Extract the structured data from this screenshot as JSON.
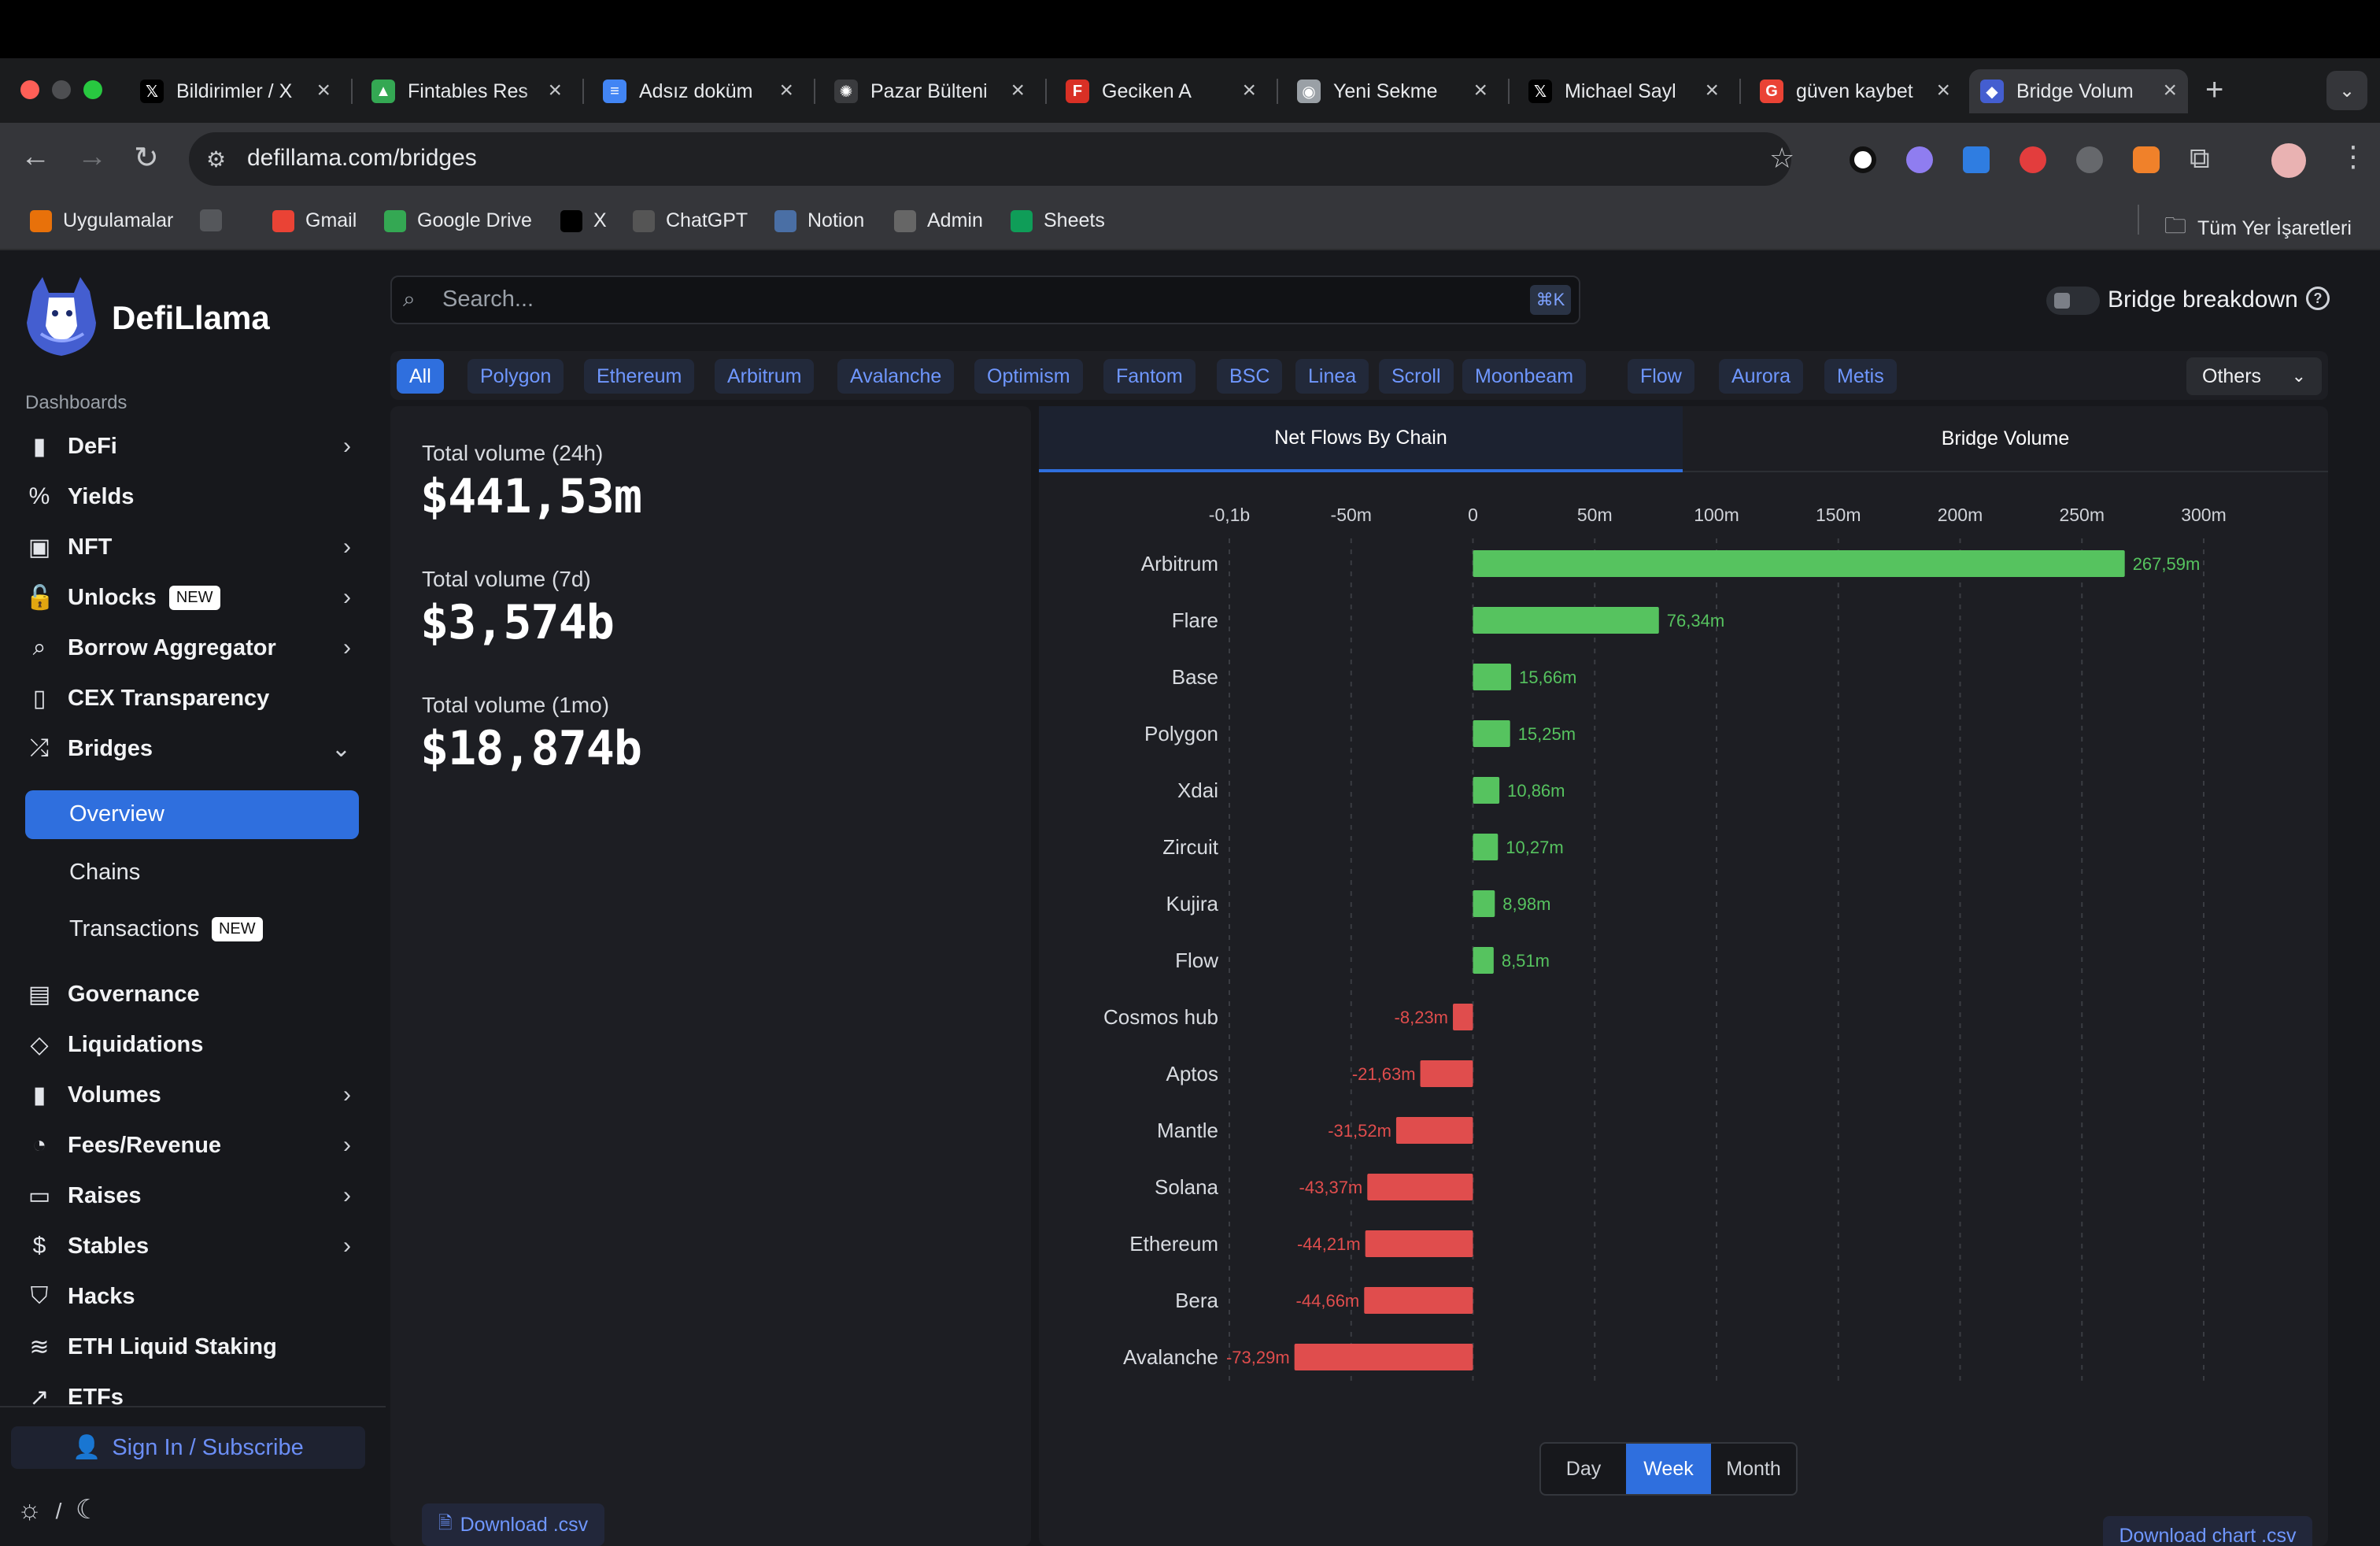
{
  "browser": {
    "tabs": [
      {
        "title": "Bildirimler / X",
        "icon": "x-logo-icon",
        "color": "#000000"
      },
      {
        "title": "Fintables Res",
        "icon": "google-drive-icon",
        "color": "#34a853"
      },
      {
        "title": "Adsız doküm",
        "icon": "google-docs-icon",
        "color": "#4285f4"
      },
      {
        "title": "Pazar Bülteni",
        "icon": "chatgpt-icon",
        "color": "#ffffff"
      },
      {
        "title": "Geciken A",
        "icon": "fintables-icon",
        "color": "#d93025"
      },
      {
        "title": "Yeni Sekme",
        "icon": "chrome-icon",
        "color": "#9aa0a6"
      },
      {
        "title": "Michael Sayl",
        "icon": "x-logo-icon",
        "color": "#000000"
      },
      {
        "title": "güven kaybet",
        "icon": "google-icon",
        "color": "#ea4335"
      },
      {
        "title": "Bridge Volum",
        "icon": "defillama-icon",
        "color": "#445ed0",
        "active": true
      }
    ],
    "url": "defillama.com/bridges",
    "bookmarks": [
      {
        "label": "Uygulamalar",
        "icon": "apps-grid-icon"
      },
      {
        "label": "",
        "icon": "grid-icon"
      },
      {
        "label": "Gmail",
        "icon": "gmail-icon"
      },
      {
        "label": "Google Drive",
        "icon": "google-drive-icon"
      },
      {
        "label": "X",
        "icon": "x-logo-icon"
      },
      {
        "label": "ChatGPT",
        "icon": "chatgpt-icon"
      },
      {
        "label": "Notion",
        "icon": "notion-icon"
      },
      {
        "label": "Admin",
        "icon": "globe-icon"
      },
      {
        "label": "Sheets",
        "icon": "google-sheets-icon"
      }
    ],
    "all_bookmarks": "Tüm Yer İşaretleri"
  },
  "sidebar": {
    "brand": "DefiLlama",
    "section_label": "Dashboards",
    "items": [
      {
        "label": "DeFi",
        "icon": "bar-chart-icon",
        "chevron": true
      },
      {
        "label": "Yields",
        "icon": "percent-icon"
      },
      {
        "label": "NFT",
        "icon": "image-icon",
        "chevron": true
      },
      {
        "label": "Unlocks",
        "icon": "unlock-icon",
        "chevron": true,
        "badge": "NEW"
      },
      {
        "label": "Borrow Aggregator",
        "icon": "search-icon",
        "chevron": true
      },
      {
        "label": "CEX Transparency",
        "icon": "book-icon"
      },
      {
        "label": "Bridges",
        "icon": "shuffle-icon",
        "expanded": true
      }
    ],
    "bridges_sub": {
      "overview": "Overview",
      "chains": "Chains",
      "transactions": "Transactions",
      "transactions_badge": "NEW"
    },
    "items2": [
      {
        "label": "Governance",
        "icon": "document-icon"
      },
      {
        "label": "Liquidations",
        "icon": "droplet-icon"
      },
      {
        "label": "Volumes",
        "icon": "bar-chart-icon",
        "chevron": true
      },
      {
        "label": "Fees/Revenue",
        "icon": "pie-chart-icon",
        "chevron": true
      },
      {
        "label": "Raises",
        "icon": "tablet-icon",
        "chevron": true
      },
      {
        "label": "Stables",
        "icon": "dollar-icon",
        "chevron": true
      },
      {
        "label": "Hacks",
        "icon": "shield-off-icon"
      },
      {
        "label": "ETH Liquid Staking",
        "icon": "layers-icon"
      },
      {
        "label": "ETFs",
        "icon": "trending-up-icon"
      }
    ],
    "sign_in": "Sign In / Subscribe",
    "theme_sep": "/"
  },
  "search": {
    "placeholder": "Search...",
    "shortcut": "⌘K"
  },
  "bridge_breakdown": {
    "label": "Bridge breakdown",
    "enabled": false
  },
  "chains_filter": {
    "chips": [
      "All",
      "Polygon",
      "Ethereum",
      "Arbitrum",
      "Avalanche",
      "Optimism",
      "Fantom",
      "BSC",
      "Linea",
      "Scroll",
      "Moonbeam",
      "Flow",
      "Aurora",
      "Metis"
    ],
    "active": "All",
    "others": "Others"
  },
  "stats": [
    {
      "label": "Total volume (24h)",
      "value": "$441,53m"
    },
    {
      "label": "Total volume (7d)",
      "value": "$3,574b"
    },
    {
      "label": "Total volume (1mo)",
      "value": "$18,874b"
    }
  ],
  "download_csv": "Download .csv",
  "chart_tabs": {
    "net_flows": "Net Flows By Chain",
    "bridge_volume": "Bridge Volume",
    "active": "net_flows"
  },
  "range": {
    "options": [
      "Day",
      "Week",
      "Month"
    ],
    "active": "Week"
  },
  "download_chart": "Download chart .csv",
  "colors": {
    "accent": "#2f6fde",
    "positive": "#56c35f",
    "negative": "#e04d4d",
    "panel": "#1d1e23",
    "background": "#17181c"
  },
  "chart_data": {
    "type": "bar",
    "orientation": "horizontal",
    "title": "",
    "xlabel": "",
    "ylabel": "",
    "xlim": [
      -100,
      300
    ],
    "x_ticks": [
      "-0,1b",
      "-50m",
      "0",
      "50m",
      "100m",
      "150m",
      "200m",
      "250m",
      "300m"
    ],
    "tick_values": [
      -100,
      -50,
      0,
      50,
      100,
      150,
      200,
      250,
      300
    ],
    "unit": "m",
    "grid": true,
    "categories": [
      "Arbitrum",
      "Flare",
      "Base",
      "Polygon",
      "Xdai",
      "Zircuit",
      "Kujira",
      "Flow",
      "Cosmos hub",
      "Aptos",
      "Mantle",
      "Solana",
      "Ethereum",
      "Bera",
      "Avalanche"
    ],
    "values": [
      267.59,
      76.34,
      15.66,
      15.25,
      10.86,
      10.27,
      8.98,
      8.51,
      -8.23,
      -21.63,
      -31.52,
      -43.37,
      -44.21,
      -44.66,
      -73.29
    ],
    "value_labels": [
      "267,59m",
      "76,34m",
      "15,66m",
      "15,25m",
      "10,86m",
      "10,27m",
      "8,98m",
      "8,51m",
      "-8,23m",
      "-21,63m",
      "-31,52m",
      "-43,37m",
      "-44,21m",
      "-44,66m",
      "-73,29m"
    ]
  }
}
